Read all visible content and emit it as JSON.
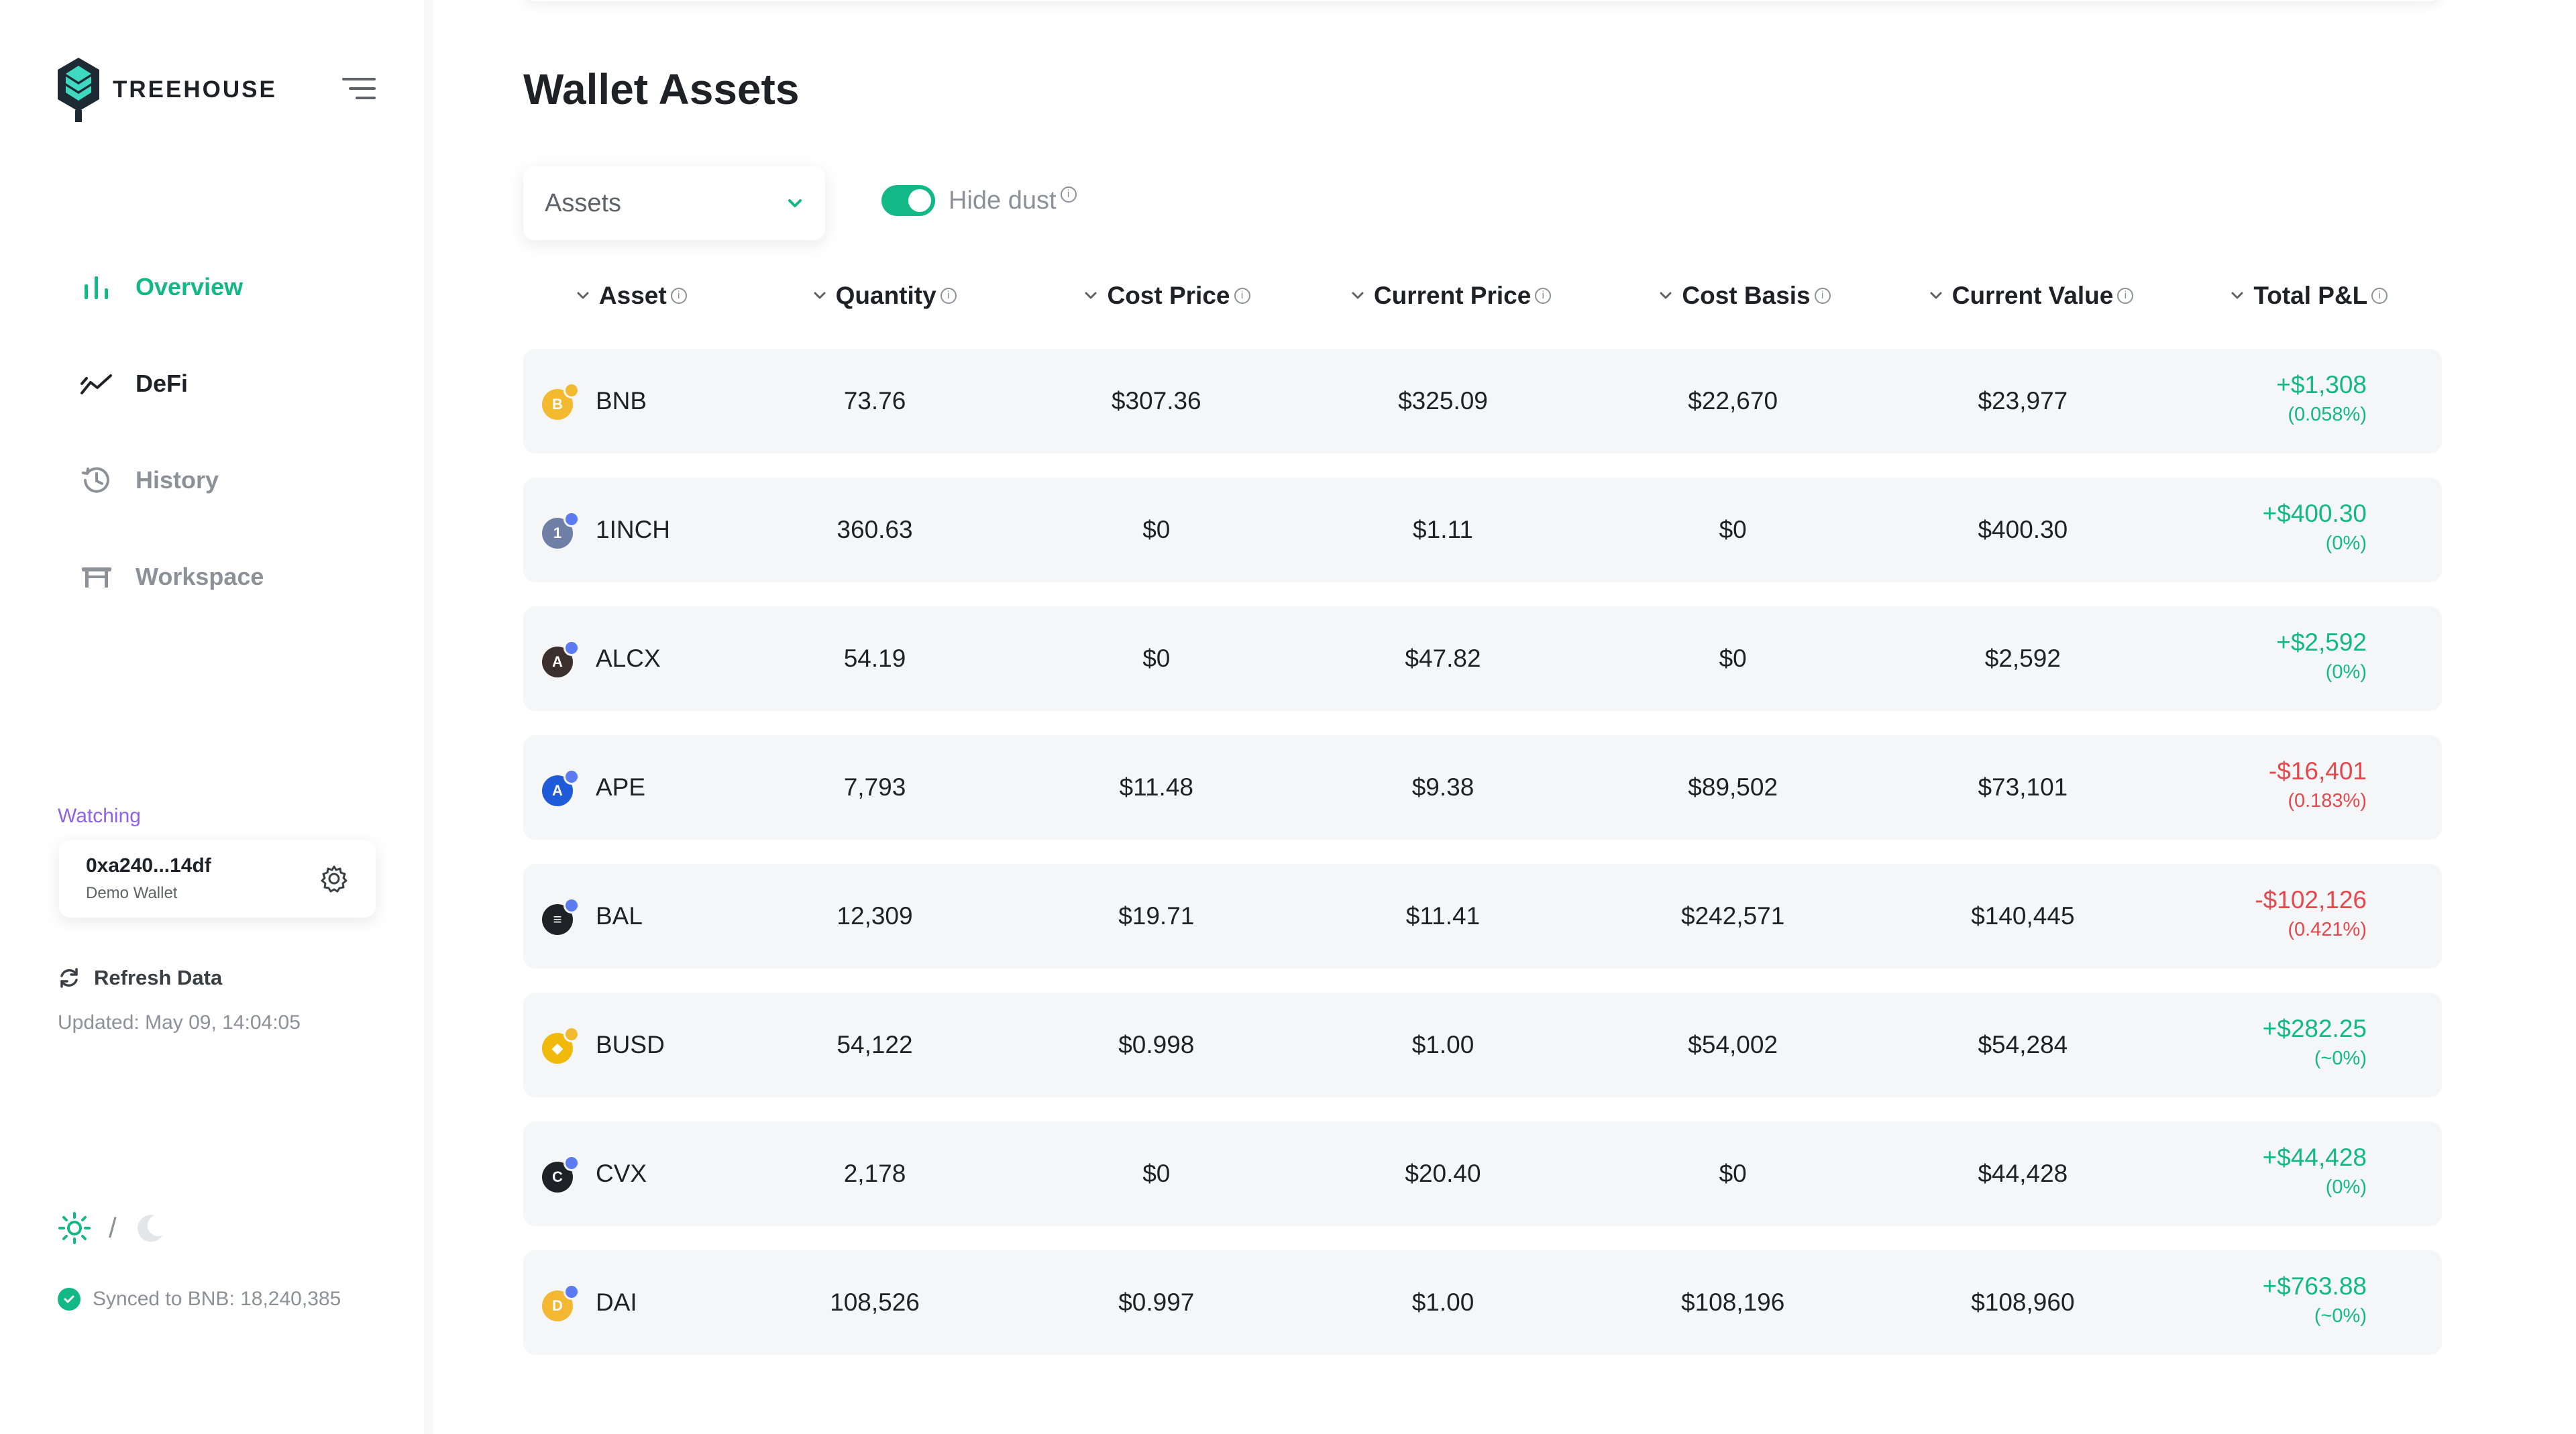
{
  "brand": {
    "name": "TREEHOUSE"
  },
  "nav": [
    {
      "label": "Overview",
      "icon": "bar-chart-icon",
      "state": "active"
    },
    {
      "label": "DeFi",
      "icon": "trend-icon",
      "state": "dark"
    },
    {
      "label": "History",
      "icon": "history-icon",
      "state": "muted"
    },
    {
      "label": "Workspace",
      "icon": "workspace-icon",
      "state": "muted"
    }
  ],
  "watching": {
    "label": "Watching",
    "address": "0xa240...14df",
    "wallet_name": "Demo Wallet"
  },
  "refresh": {
    "label": "Refresh Data",
    "updated": "Updated: May 09, 14:04:05"
  },
  "theme": {
    "separator": "/"
  },
  "sync": {
    "status": "Synced to BNB: 18,240,385"
  },
  "page": {
    "title": "Wallet Assets"
  },
  "filters": {
    "view_select": "Assets",
    "hide_dust_label": "Hide dust",
    "hide_dust_on": true,
    "info_glyph": "i"
  },
  "table": {
    "headers": [
      "Asset",
      "Quantity",
      "Cost Price",
      "Current Price",
      "Cost Basis",
      "Current Value",
      "Total P&L"
    ],
    "rows": [
      {
        "asset": "BNB",
        "quantity": "73.76",
        "cost_price": "$307.36",
        "current_price": "$325.09",
        "cost_basis": "$22,670",
        "current_value": "$23,977",
        "pl": "+$1,308",
        "pl_pct": "(0.058%)",
        "trend": "pos",
        "coin_color": "#f3ba2f",
        "badge": "bnb",
        "glyph": "B"
      },
      {
        "asset": "1INCH",
        "quantity": "360.63",
        "cost_price": "$0",
        "current_price": "$1.11",
        "cost_basis": "$0",
        "current_value": "$400.30",
        "pl": "+$400.30",
        "pl_pct": "(0%)",
        "trend": "pos",
        "coin_color": "#6f7fa6",
        "badge": "eth",
        "glyph": "1"
      },
      {
        "asset": "ALCX",
        "quantity": "54.19",
        "cost_price": "$0",
        "current_price": "$47.82",
        "cost_basis": "$0",
        "current_value": "$2,592",
        "pl": "+$2,592",
        "pl_pct": "(0%)",
        "trend": "pos",
        "coin_color": "#3b302b",
        "badge": "eth",
        "glyph": "A"
      },
      {
        "asset": "APE",
        "quantity": "7,793",
        "cost_price": "$11.48",
        "current_price": "$9.38",
        "cost_basis": "$89,502",
        "current_value": "$73,101",
        "pl": "-$16,401",
        "pl_pct": "(0.183%)",
        "trend": "neg",
        "coin_color": "#1f5bd8",
        "badge": "eth",
        "glyph": "A"
      },
      {
        "asset": "BAL",
        "quantity": "12,309",
        "cost_price": "$19.71",
        "current_price": "$11.41",
        "cost_basis": "$242,571",
        "current_value": "$140,445",
        "pl": "-$102,126",
        "pl_pct": "(0.421%)",
        "trend": "neg",
        "coin_color": "#1e2226",
        "badge": "eth",
        "glyph": "≡"
      },
      {
        "asset": "BUSD",
        "quantity": "54,122",
        "cost_price": "$0.998",
        "current_price": "$1.00",
        "cost_basis": "$54,002",
        "current_value": "$54,284",
        "pl": "+$282.25",
        "pl_pct": "(~0%)",
        "trend": "pos",
        "coin_color": "#f0b90b",
        "badge": "bnb",
        "glyph": "◆"
      },
      {
        "asset": "CVX",
        "quantity": "2,178",
        "cost_price": "$0",
        "current_price": "$20.40",
        "cost_basis": "$0",
        "current_value": "$44,428",
        "pl": "+$44,428",
        "pl_pct": "(0%)",
        "trend": "pos",
        "coin_color": "#1e2226",
        "badge": "eth",
        "glyph": "C"
      },
      {
        "asset": "DAI",
        "quantity": "108,526",
        "cost_price": "$0.997",
        "current_price": "$1.00",
        "cost_basis": "$108,196",
        "current_value": "$108,960",
        "pl": "+$763.88",
        "pl_pct": "(~0%)",
        "trend": "pos",
        "coin_color": "#f4b731",
        "badge": "eth",
        "glyph": "D"
      }
    ]
  },
  "colors": {
    "accent": "#12b886",
    "negative": "#e5484d",
    "watching": "#8e63e6",
    "row_bg": "#f5f6f8"
  }
}
